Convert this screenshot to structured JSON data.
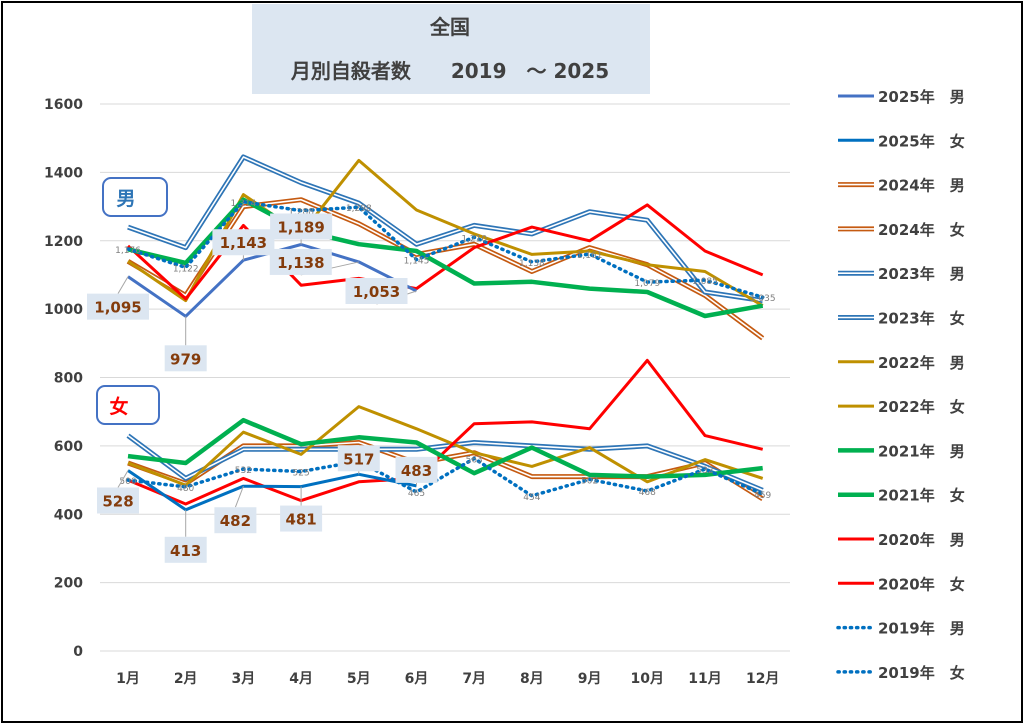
{
  "chart_data": {
    "type": "line",
    "title": "全国",
    "subtitle": "月別自殺者数　　2019　～ 2025",
    "categories": [
      "1月",
      "2月",
      "3月",
      "4月",
      "5月",
      "6月",
      "7月",
      "8月",
      "9月",
      "10月",
      "11月",
      "12月"
    ],
    "ylim": [
      0,
      1600
    ],
    "yticks": [
      0,
      200,
      400,
      600,
      800,
      1000,
      1200,
      1400,
      1600
    ],
    "grid": true,
    "legend_position": "right",
    "group_labels": {
      "male": "男",
      "female": "女"
    },
    "series": [
      {
        "name": "2025年　男",
        "color": "#4472c4",
        "style": "solid",
        "values": [
          1095,
          979,
          1143,
          1189,
          1138,
          1053,
          null,
          null,
          null,
          null,
          null,
          null
        ]
      },
      {
        "name": "2025年　女",
        "color": "#0070c0",
        "style": "solid",
        "values": [
          528,
          413,
          482,
          481,
          517,
          483,
          null,
          null,
          null,
          null,
          null,
          null
        ]
      },
      {
        "name": "2024年　男",
        "color": "#c55a11",
        "style": "double",
        "values": [
          1140,
          1040,
          1300,
          1320,
          1250,
          1160,
          1190,
          1110,
          1180,
          1130,
          1040,
          915
        ]
      },
      {
        "name": "2024年　女",
        "color": "#c55a11",
        "style": "double",
        "values": [
          550,
          490,
          600,
          600,
          610,
          550,
          580,
          510,
          510,
          510,
          550,
          445
        ]
      },
      {
        "name": "2023年　男",
        "color": "#2e75b6",
        "style": "double",
        "values": [
          1240,
          1180,
          1445,
          1370,
          1310,
          1190,
          1245,
          1220,
          1285,
          1260,
          1050,
          1025
        ]
      },
      {
        "name": "2023年　女",
        "color": "#2e75b6",
        "style": "double",
        "values": [
          630,
          505,
          590,
          590,
          590,
          590,
          610,
          600,
          590,
          600,
          540,
          470
        ]
      },
      {
        "name": "2022年　男",
        "color": "#bf9000",
        "style": "solid",
        "values": [
          1140,
          1025,
          1335,
          1220,
          1435,
          1290,
          1220,
          1160,
          1170,
          1130,
          1110,
          1010
        ]
      },
      {
        "name": "2022年　女",
        "color": "#bf9000",
        "style": "solid",
        "values": [
          550,
          485,
          640,
          575,
          715,
          650,
          580,
          540,
          595,
          495,
          560,
          505
        ]
      },
      {
        "name": "2021年　男",
        "color": "#00b050",
        "style": "solid",
        "values": [
          1175,
          1135,
          1320,
          1230,
          1190,
          1170,
          1075,
          1080,
          1060,
          1050,
          980,
          1010
        ]
      },
      {
        "name": "2021年　女",
        "color": "#00b050",
        "style": "solid",
        "values": [
          570,
          550,
          675,
          605,
          625,
          610,
          520,
          595,
          515,
          510,
          515,
          535
        ]
      },
      {
        "name": "2020年　男",
        "color": "#ff0000",
        "style": "solid",
        "values": [
          1185,
          1030,
          1245,
          1070,
          1090,
          1060,
          1180,
          1240,
          1200,
          1305,
          1170,
          1100
        ]
      },
      {
        "name": "2020年　女",
        "color": "#ff0000",
        "style": "solid",
        "values": [
          500,
          430,
          505,
          440,
          495,
          505,
          665,
          670,
          650,
          850,
          630,
          590
        ]
      },
      {
        "name": "2019年　男",
        "color": "#0070c0",
        "style": "dotted",
        "values": [
          1176,
          1122,
          1314,
          1288,
          1298,
          1145,
          1210,
          1138,
          1161,
          1079,
          1085,
          1035
        ]
      },
      {
        "name": "2019年　女",
        "color": "#0070c0",
        "style": "dotted",
        "values": [
          500,
          480,
          532,
          525,
          555,
          465,
          563,
          454,
          502,
          468,
          532,
          459
        ]
      }
    ],
    "callouts_2025": {
      "male": {
        "series": "2025年　男",
        "labels": [
          "1,095",
          "979",
          "1,143",
          "1,189",
          "1,138",
          "1,053"
        ]
      },
      "female": {
        "series": "2025年　女",
        "labels": [
          "528",
          "413",
          "482",
          "481",
          "517",
          "483"
        ]
      }
    },
    "small_labels_2019": {
      "male": [
        "1,176",
        "1,122",
        "1,314",
        "1,288",
        "1,298",
        "1,145",
        "1,210",
        "1,138",
        "1,161",
        "1,079",
        "1,085",
        "1,035"
      ],
      "female": [
        "500",
        "480",
        "532",
        "525",
        "555",
        "465",
        "563",
        "454",
        "502",
        "468",
        "532",
        "459"
      ]
    }
  }
}
